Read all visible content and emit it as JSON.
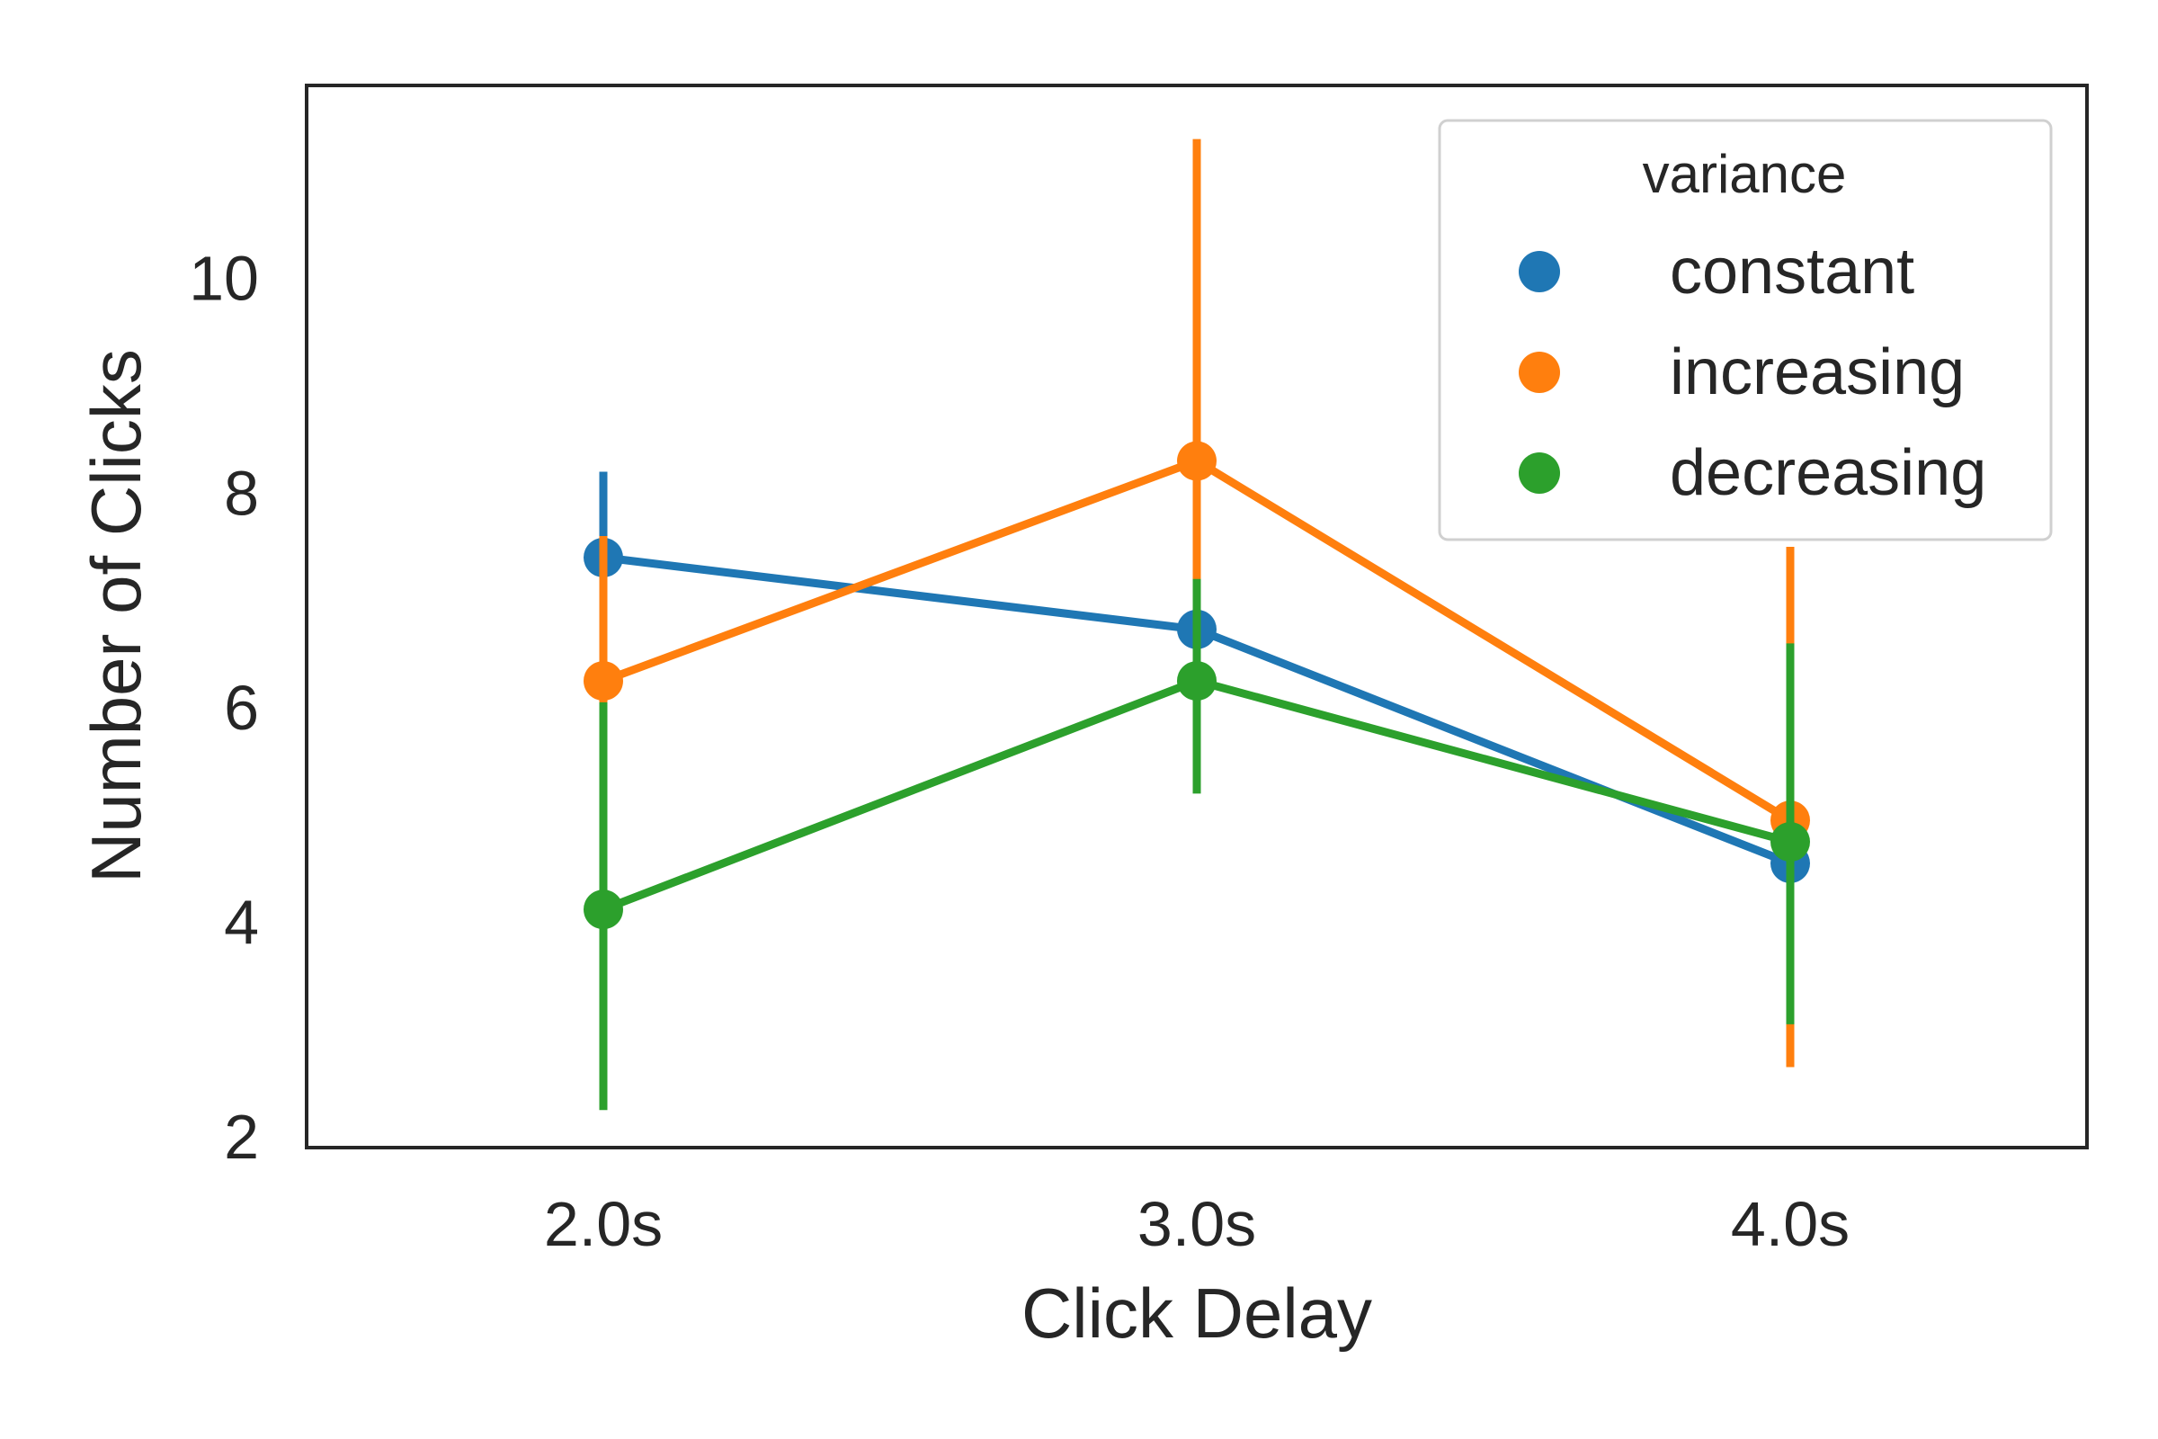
{
  "chart_data": {
    "type": "line",
    "categories": [
      "2.0s",
      "3.0s",
      "4.0s"
    ],
    "xlabel": "Click Delay",
    "ylabel": "Number of Clicks",
    "ylim": [
      1.9,
      11.8
    ],
    "yticks": [
      2,
      4,
      6,
      8,
      10
    ],
    "grid": false,
    "legend": {
      "title": "variance",
      "placement": "top-right"
    },
    "series": [
      {
        "name": "constant",
        "color": "#1f77b4",
        "values": [
          7.4,
          6.73,
          4.55
        ],
        "ci": [
          [
            6.4,
            8.2
          ],
          [
            6.7,
            6.8
          ],
          [
            4.5,
            4.6
          ]
        ]
      },
      {
        "name": "increasing",
        "color": "#ff7f0e",
        "values": [
          6.25,
          8.3,
          4.95
        ],
        "ci": [
          [
            5.6,
            7.6
          ],
          [
            6.9,
            11.3
          ],
          [
            2.65,
            7.5
          ]
        ]
      },
      {
        "name": "decreasing",
        "color": "#2ca02c",
        "values": [
          4.12,
          6.25,
          4.75
        ],
        "ci": [
          [
            2.25,
            6.05
          ],
          [
            5.2,
            7.2
          ],
          [
            3.05,
            6.6
          ]
        ]
      }
    ]
  }
}
